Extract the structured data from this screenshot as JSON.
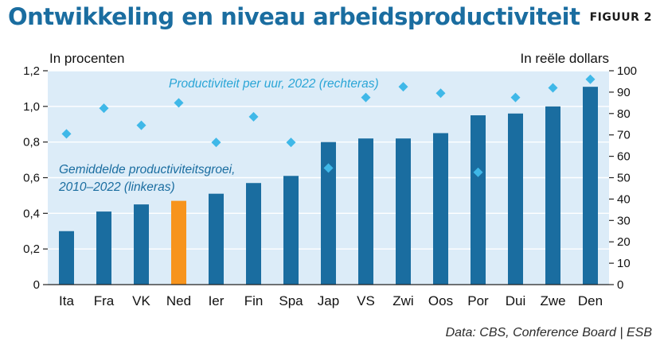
{
  "header": {
    "title": "Ontwikkeling en niveau arbeidsproductiviteit",
    "figure_label": "FIGUUR 2"
  },
  "footer": {
    "source": "Data: CBS, Conference Board | ESB"
  },
  "colors": {
    "bar": "#1a6da0",
    "bar_highlight": "#f7941d",
    "marker": "#3fb8e8",
    "panel": "#dcecf8"
  },
  "chart_data": {
    "type": "bar",
    "categories": [
      "Ita",
      "Fra",
      "VK",
      "Ned",
      "Ier",
      "Fin",
      "Spa",
      "Jap",
      "VS",
      "Zwi",
      "Oos",
      "Por",
      "Dui",
      "Zwe",
      "Den"
    ],
    "highlight_category": "Ned",
    "left_axis": {
      "unit_label": "In procenten",
      "ylim": [
        0,
        1.2
      ],
      "ticks": [
        "0",
        "0,2",
        "0,4",
        "0,6",
        "0,8",
        "1,0",
        "1,2"
      ]
    },
    "right_axis": {
      "unit_label": "In reële dollars",
      "ylim": [
        0,
        100
      ],
      "ticks": [
        "0",
        "10",
        "20",
        "30",
        "40",
        "50",
        "60",
        "70",
        "80",
        "90",
        "100"
      ]
    },
    "grid": true,
    "series": [
      {
        "name": "Gemiddelde productiviteitsgroei, 2010–2022 (linkeras)",
        "label_lines": [
          "Gemiddelde productiviteitsgroei,",
          "2010–2022 (linkeras)"
        ],
        "type": "bar",
        "axis": "left",
        "values": [
          0.3,
          0.41,
          0.45,
          0.47,
          0.51,
          0.57,
          0.61,
          0.8,
          0.82,
          0.82,
          0.85,
          0.95,
          0.96,
          1.0,
          1.11
        ]
      },
      {
        "name": "Productiviteit per uur, 2022 (rechteras)",
        "label_lines": [
          "Productiviteit per uur, 2022 (rechteras)"
        ],
        "type": "scatter",
        "axis": "right",
        "values": [
          70.5,
          82.5,
          74.5,
          85,
          66.5,
          78.5,
          66.5,
          54.5,
          87.5,
          92.5,
          89.5,
          52.5,
          87.5,
          92,
          96
        ]
      }
    ]
  }
}
